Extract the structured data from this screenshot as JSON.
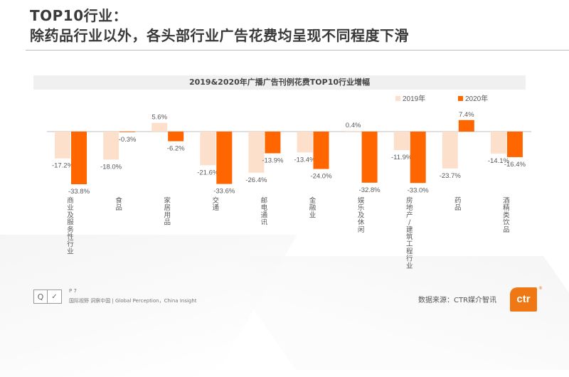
{
  "slide": {
    "title_line1": "TOP10行业：",
    "title_line2": "除药品行业以外，各头部行业广告花费均呈现不同程度下滑",
    "page": "P 7",
    "tagline": "国际视野 洞察中国 | Global Perception，China Insight",
    "source": "数据来源：CTR媒介智讯",
    "logo_text": "ctr",
    "logo_reg": "®",
    "cert_icon_a": "Q",
    "cert_icon_b": "✓"
  },
  "chart_data": {
    "type": "bar",
    "title": "2019&2020年广播广告刊例花费TOP10行业增幅",
    "xlabel": "",
    "ylabel": "",
    "legend_position": "top-right",
    "grid": false,
    "categories": [
      "商业及服务性行业",
      "食品",
      "家居用品",
      "交通",
      "邮电通讯",
      "金融业",
      "娱乐及休闲",
      "房地产/建筑工程行业",
      "药品",
      "酒精类饮品"
    ],
    "series": [
      {
        "name": "2019年",
        "color": "#fde0cc",
        "values": [
          -17.2,
          -18.0,
          5.6,
          -21.6,
          -26.4,
          -13.4,
          0.4,
          -11.9,
          -23.7,
          -14.1
        ]
      },
      {
        "name": "2020年",
        "color": "#ff6600",
        "values": [
          -33.8,
          -0.3,
          -6.2,
          -33.6,
          -13.9,
          -24.0,
          -32.8,
          -33.0,
          7.4,
          -16.4
        ]
      }
    ],
    "value_format": "percent_1dp",
    "axis_color": "#bfbfbf"
  }
}
